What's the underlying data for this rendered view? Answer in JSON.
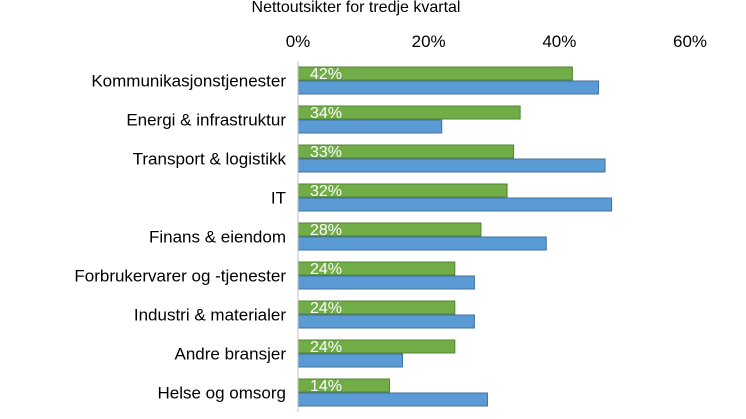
{
  "chart_data": {
    "type": "bar",
    "orientation": "horizontal",
    "title": "Nettoutsikter for tredje kvartal",
    "xlabel": "",
    "ylabel": "",
    "xlim": [
      0,
      0.6
    ],
    "x_ticks": [
      "0%",
      "20%",
      "40%",
      "60%"
    ],
    "x_axis_position": "top",
    "grid": false,
    "legend": "none",
    "categories": [
      "Kommunikasjonstjenester",
      "Energi & infrastruktur",
      "Transport & logistikk",
      "IT",
      "Finans & eiendom",
      "Forbrukervarer og -tjenester",
      "Industri & materialer",
      "Andre bransjer",
      "Helse og omsorg"
    ],
    "series": [
      {
        "color": "#70ad47",
        "values": [
          0.42,
          0.34,
          0.33,
          0.32,
          0.28,
          0.24,
          0.24,
          0.24,
          0.14
        ],
        "labels": [
          "42%",
          "34%",
          "33%",
          "32%",
          "28%",
          "24%",
          "24%",
          "24%",
          "14%"
        ]
      },
      {
        "color": "#5b9bd5",
        "values": [
          0.46,
          0.22,
          0.47,
          0.48,
          0.38,
          0.27,
          0.27,
          0.16,
          0.29
        ]
      }
    ]
  }
}
